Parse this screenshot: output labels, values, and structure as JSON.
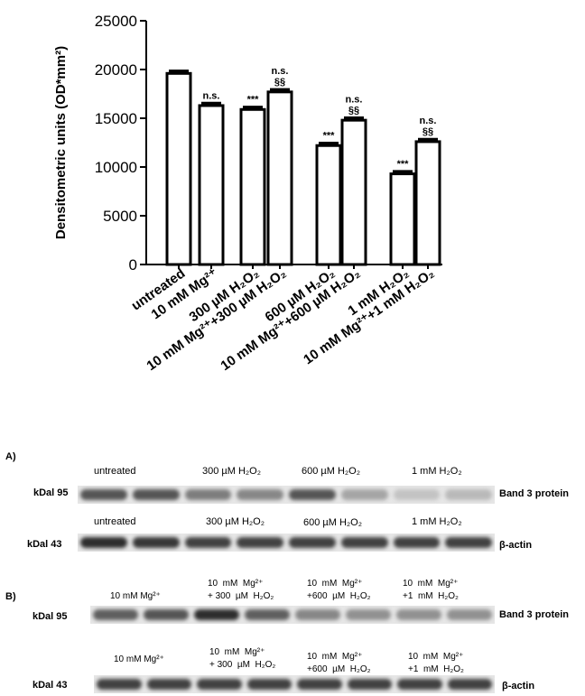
{
  "chart_data": {
    "type": "bar",
    "ylabel": "Densitometric units (OD*mm²)",
    "ylim": [
      0,
      25000
    ],
    "yticks": [
      "0",
      "5000",
      "10000",
      "15000",
      "20000",
      "25000"
    ],
    "categories": [
      "untreated",
      "10 mM Mg²⁺",
      "300 µM H₂O₂",
      "10 mM Mg²⁺+300 µM H₂O₂",
      "600 µM H₂O₂",
      "10 mM Mg²⁺+600 µM H₂O₂",
      "1 mM H₂O₂",
      "10 mM Mg²⁺+1 mM H₂O₂"
    ],
    "values": [
      19600,
      16300,
      15900,
      17700,
      12200,
      14800,
      9300,
      12600
    ],
    "errors": [
      250,
      250,
      250,
      250,
      250,
      250,
      250,
      250
    ],
    "annotations": [
      "",
      "n.s.",
      "***",
      "n.s. §§",
      "***",
      "n.s. §§",
      "***",
      "n.s. §§"
    ]
  },
  "blots": {
    "panel_a": "A)",
    "panel_b": "B)",
    "a_band3_headers": [
      "untreated",
      "300  µM  H₂O₂",
      "600  µM  H₂O₂",
      "1  mM  H₂O₂"
    ],
    "a_actin_headers": [
      "untreated",
      "300 µM  H₂O₂",
      "600 µM  H₂O₂",
      "1  mM  H₂O₂"
    ],
    "b_band3_headers": [
      "10  mM  Mg²⁺",
      "10  mM  Mg²⁺\n+ 300  µM  H₂O₂",
      "10  mM  Mg²⁺\n+600  µM  H₂O₂",
      "10  mM  Mg²⁺\n+1  mM  H₂O₂"
    ],
    "b_actin_headers": [
      "10  mM  Mg²⁺",
      "10  mM  Mg²⁺\n+ 300  µM  H₂O₂",
      "10  mM  Mg²⁺\n+600  µM  H₂O₂",
      "10  mM  Mg²⁺\n+1  mM  H₂O₂"
    ],
    "kdal_95": "kDal 95",
    "kdal_43": "kDal 43",
    "band3_label": "Band 3 protein",
    "actin_label": "β-actin",
    "b_actin_label": "β-actin",
    "a_band3_intensity": [
      0.75,
      0.75,
      0.55,
      0.5,
      0.75,
      0.35,
      0.2,
      0.25
    ],
    "a_actin_intensity": [
      0.95,
      0.9,
      0.85,
      0.85,
      0.85,
      0.85,
      0.85,
      0.85
    ],
    "b_band3_intensity": [
      0.7,
      0.75,
      0.95,
      0.7,
      0.5,
      0.45,
      0.45,
      0.45
    ],
    "b_actin_intensity": [
      0.85,
      0.85,
      0.85,
      0.85,
      0.85,
      0.85,
      0.85,
      0.85
    ]
  }
}
